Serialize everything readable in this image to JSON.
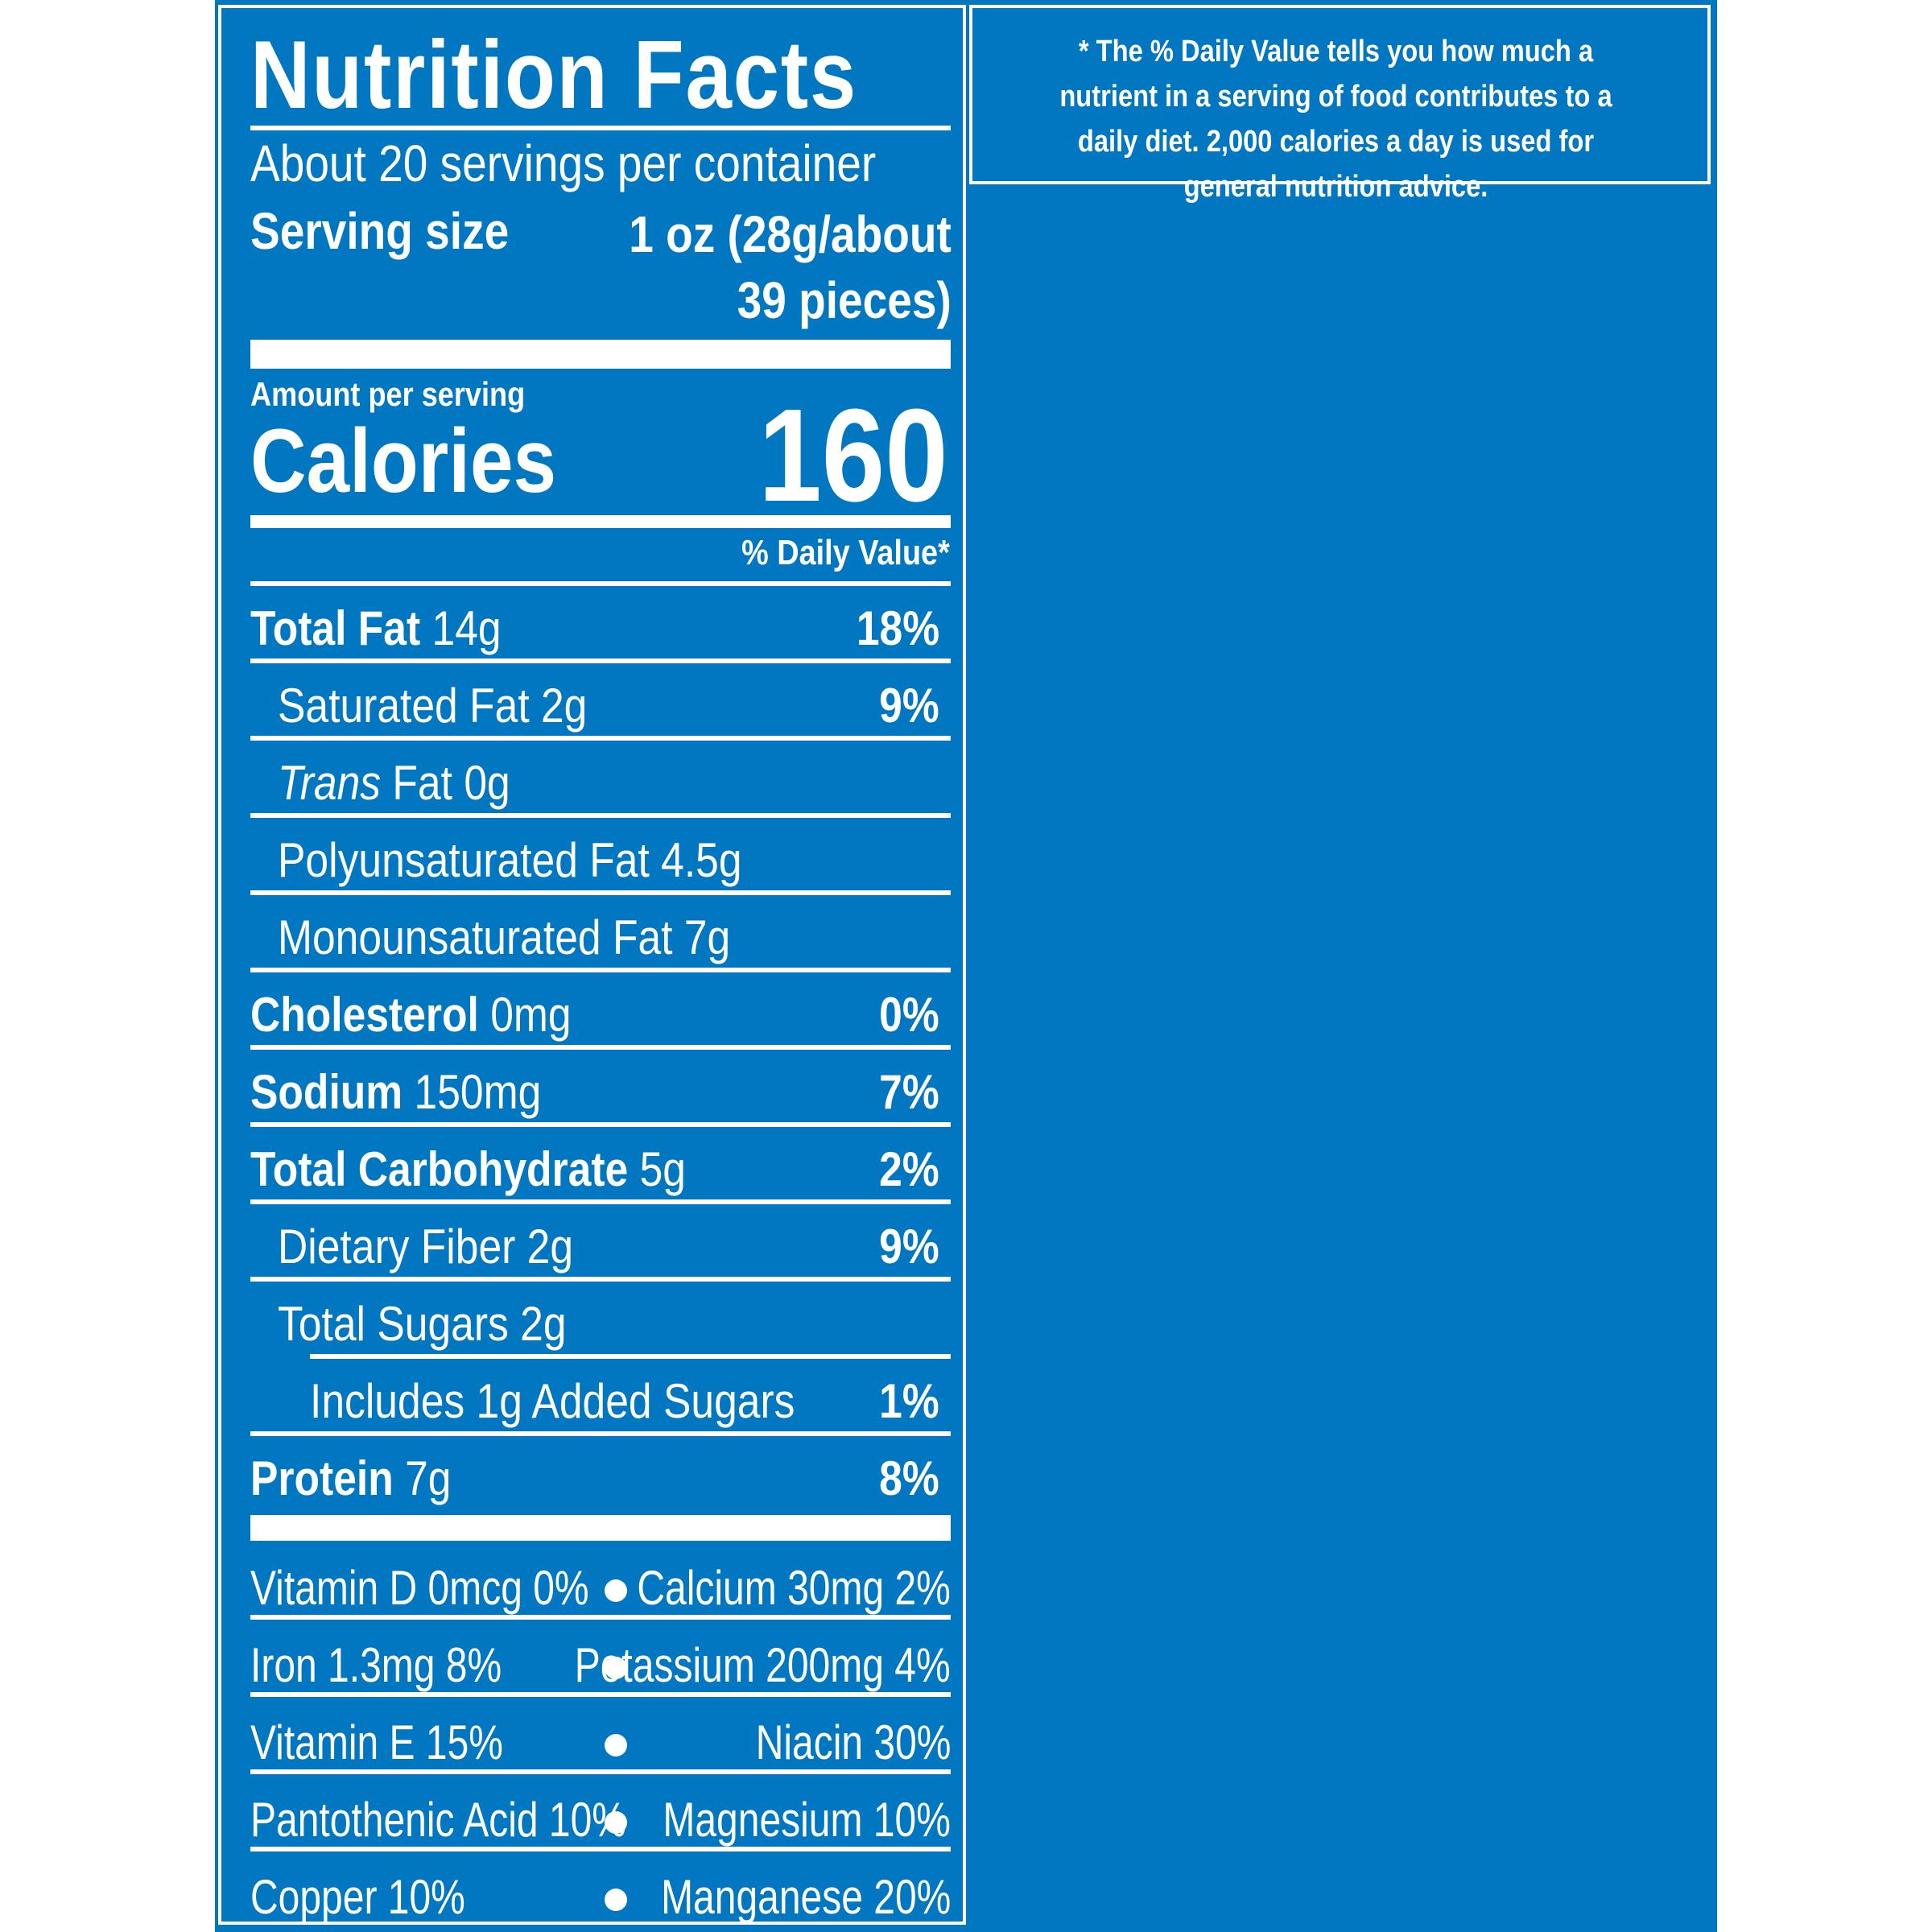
{
  "label": {
    "title": "Nutrition Facts",
    "servings_per_container": "About 20 servings per container",
    "serving_size_label": "Serving size",
    "serving_size_value_line1": "1 oz (28g/about",
    "serving_size_value_line2": "39 pieces)",
    "amount_per_serving": "Amount per serving",
    "calories_label": "Calories",
    "calories_value": "160",
    "daily_value_header": "% Daily Value*"
  },
  "nutrients": [
    {
      "name": "Total Fat",
      "amount": "14g",
      "dv": "18%"
    },
    {
      "name": "Saturated Fat",
      "amount": "2g",
      "dv": "9%"
    },
    {
      "name_italic": "Trans",
      "name": "Fat",
      "amount": "0g",
      "dv": ""
    },
    {
      "name": "Polyunsaturated Fat",
      "amount": "4.5g",
      "dv": ""
    },
    {
      "name": "Monounsaturated Fat",
      "amount": "7g",
      "dv": ""
    },
    {
      "name": "Cholesterol",
      "amount": "0mg",
      "dv": "0%"
    },
    {
      "name": "Sodium",
      "amount": "150mg",
      "dv": "7%"
    },
    {
      "name": "Total Carbohydrate",
      "amount": "5g",
      "dv": "2%"
    },
    {
      "name": "Dietary Fiber",
      "amount": "2g",
      "dv": "9%"
    },
    {
      "name": "Total Sugars",
      "amount": "2g",
      "dv": ""
    },
    {
      "name": "Includes 1g Added Sugars",
      "amount": "",
      "dv": "1%"
    },
    {
      "name": "Protein",
      "amount": "7g",
      "dv": "8%"
    }
  ],
  "vitamins": [
    {
      "left": "Vitamin D 0mcg 0%",
      "right": "Calcium 30mg 2%"
    },
    {
      "left": "Iron 1.3mg 8%",
      "right": "Potassium 200mg 4%"
    },
    {
      "left": "Vitamin E 15%",
      "right": "Niacin 30%"
    },
    {
      "left": "Pantothenic Acid 10%",
      "right": "Magnesium 10%"
    },
    {
      "left": "Copper 10%",
      "right": "Manganese 20%"
    }
  ],
  "footnote": "* The % Daily Value tells you how much a nutrient in a serving of food contributes to a daily diet. 2,000 calories a day is used for general nutrition advice.",
  "colors": {
    "background": "#0077c0",
    "text": "#ffffff"
  }
}
